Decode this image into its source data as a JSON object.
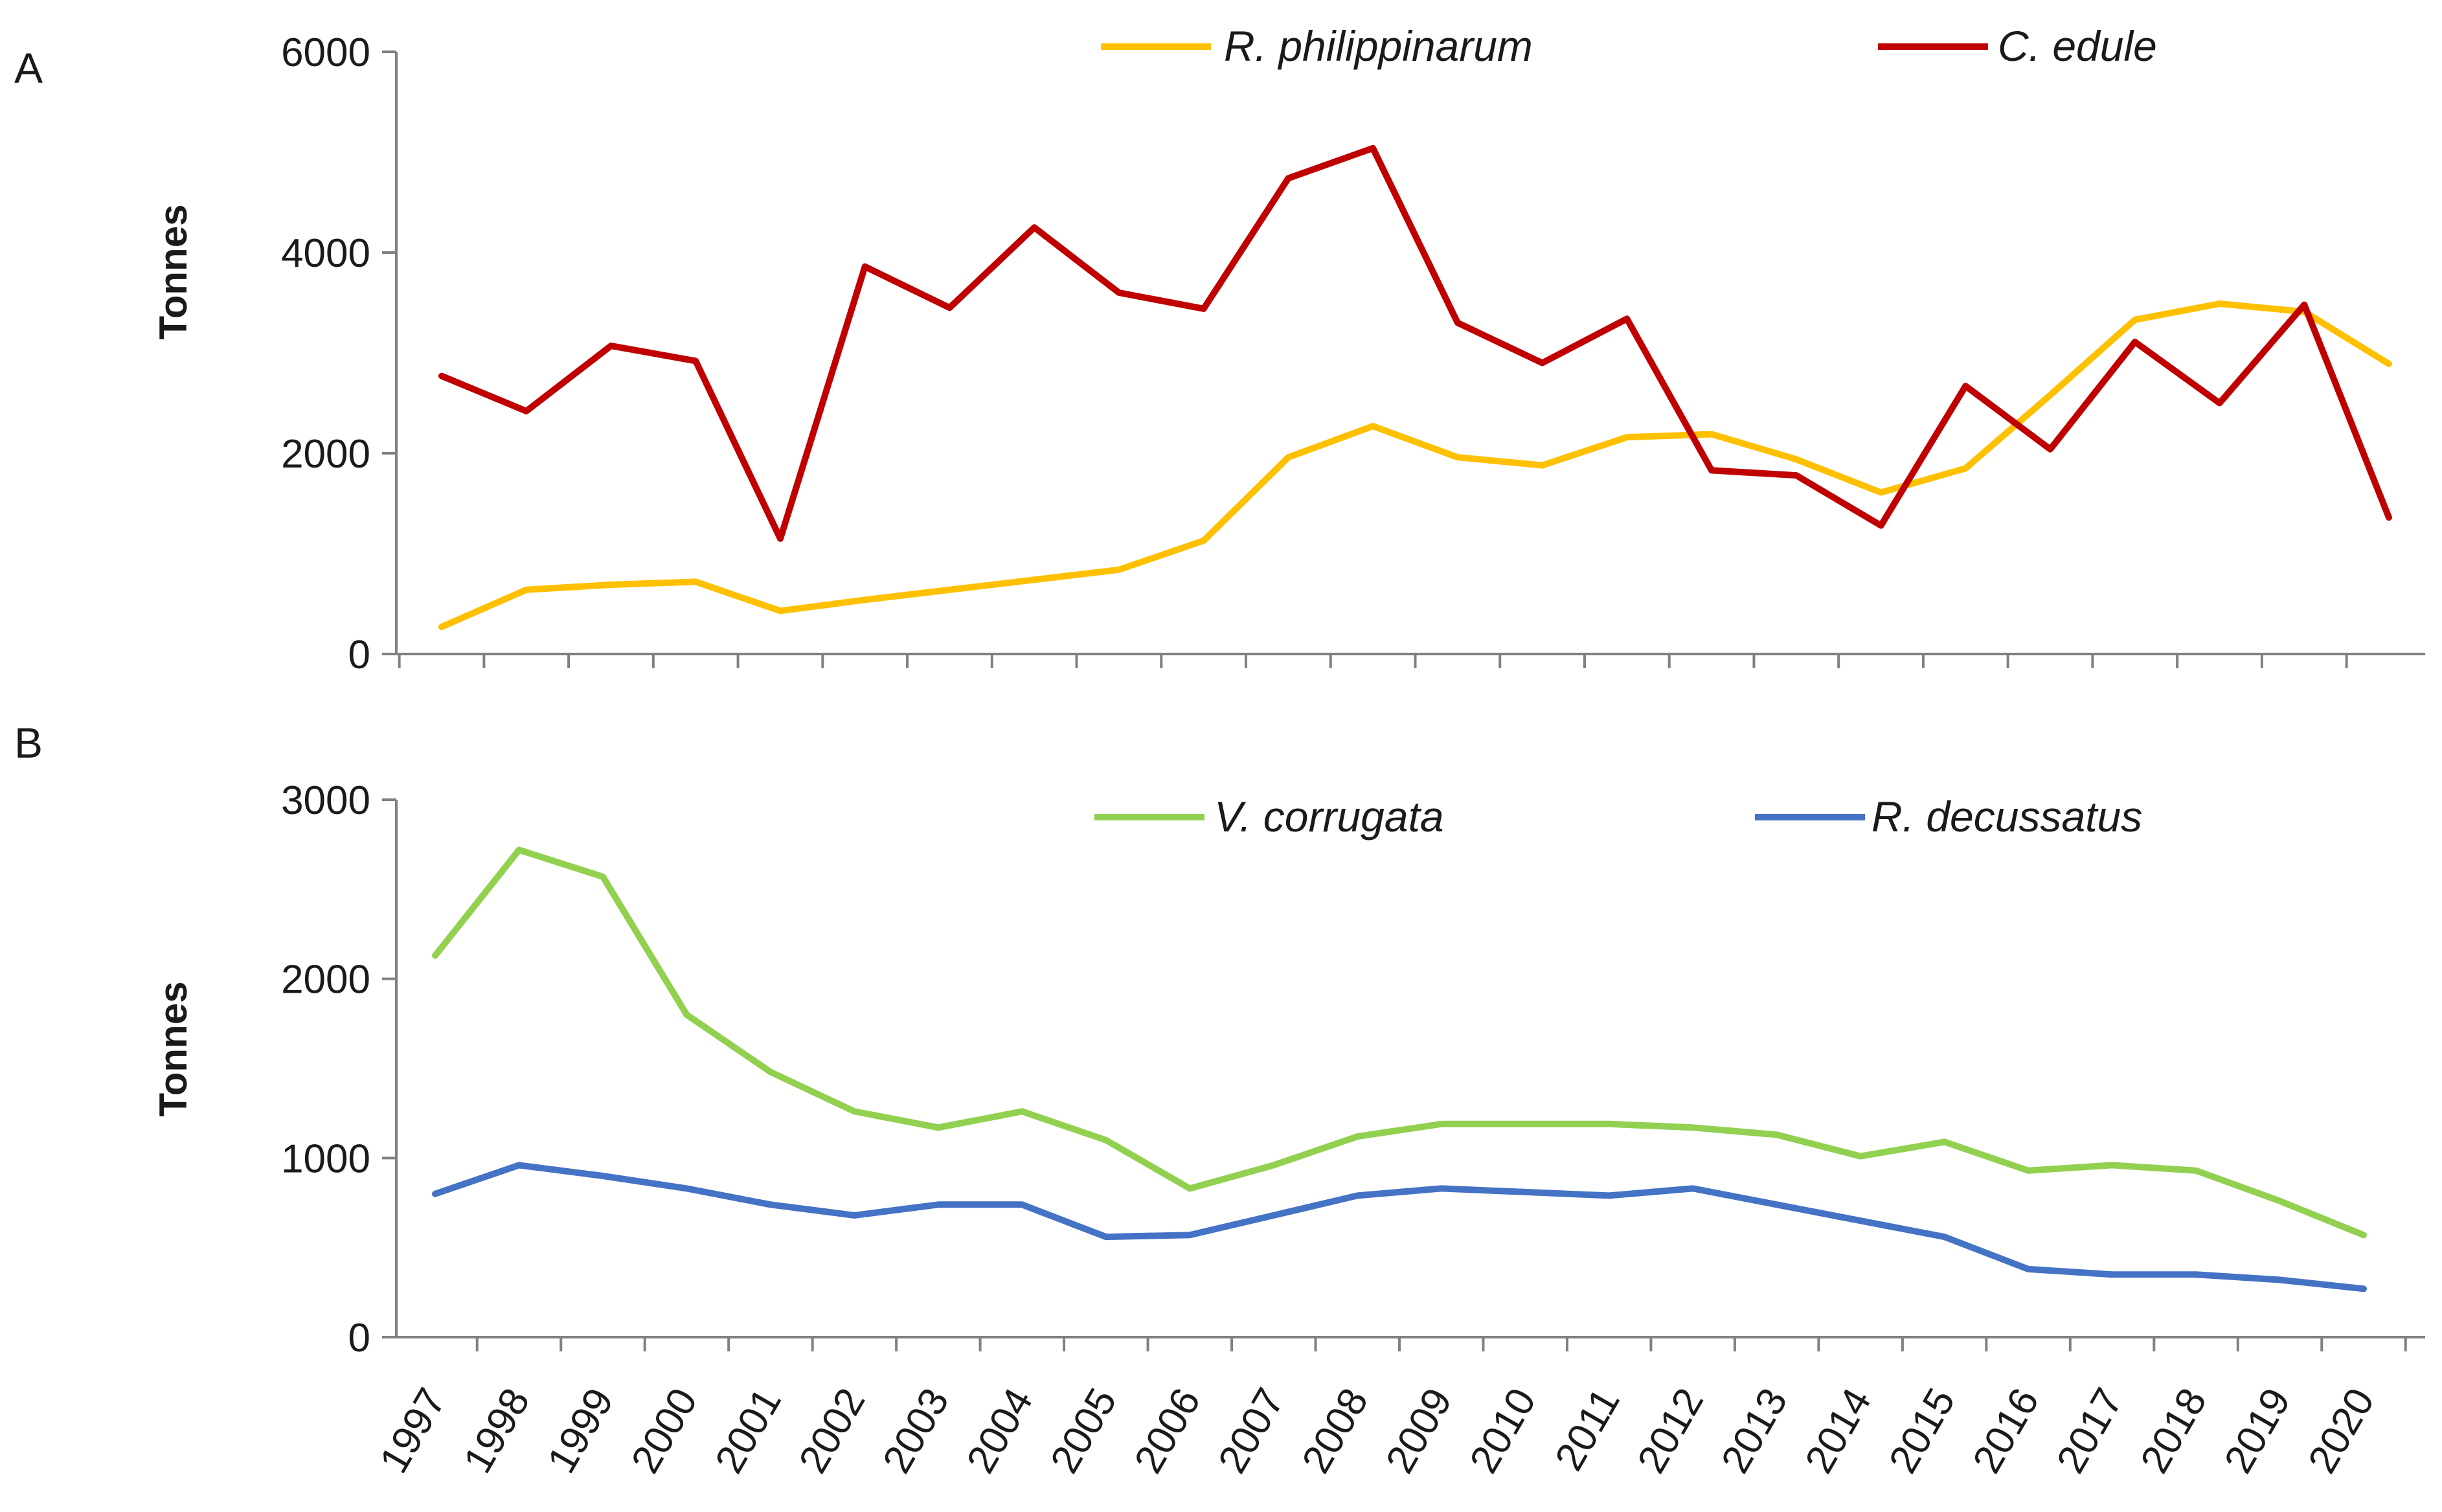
{
  "colors": {
    "r_philippinarum": "#FFC000",
    "c_edule": "#C00000",
    "v_corrugata": "#92D050",
    "r_decussatus": "#4472C4",
    "axis": "#808080",
    "text": "#1a1a1a"
  },
  "chart_data": [
    {
      "panel_label": "A",
      "type": "line",
      "title": "",
      "xlabel": "",
      "ylabel": "Tonnes",
      "ylim": [
        0,
        6000
      ],
      "yticks": [
        "0",
        "2000",
        "4000",
        "6000"
      ],
      "ytick_values": [
        0,
        2000,
        4000,
        6000
      ],
      "legend_position": "top",
      "grid": false,
      "categories": [
        "1997",
        "1998",
        "1999",
        "2000",
        "2001",
        "2002",
        "2003",
        "2004",
        "2005",
        "2006",
        "2007",
        "2008",
        "2009",
        "2010",
        "2011",
        "2012",
        "2013",
        "2014",
        "2015",
        "2016",
        "2017",
        "2018",
        "2019",
        "2020"
      ],
      "series": [
        {
          "name": "R. philippinarum",
          "color_key": "r_philippinarum",
          "values": [
            270,
            640,
            690,
            720,
            430,
            540,
            640,
            740,
            840,
            1130,
            1960,
            2270,
            1960,
            1880,
            2160,
            2190,
            1940,
            1610,
            1850,
            2580,
            3330,
            3490,
            3410,
            2890
          ]
        },
        {
          "name": "C. edule",
          "color_key": "c_edule",
          "values": [
            2770,
            2420,
            3070,
            2920,
            1150,
            3860,
            3450,
            4250,
            3600,
            3440,
            4740,
            5040,
            3300,
            2900,
            3340,
            1830,
            1780,
            1280,
            2670,
            2040,
            3110,
            2500,
            3480,
            1360
          ]
        }
      ]
    },
    {
      "panel_label": "B",
      "type": "line",
      "title": "",
      "xlabel": "",
      "ylabel": "Tonnes",
      "ylim": [
        0,
        3000
      ],
      "yticks": [
        "0",
        "1000",
        "2000",
        "3000"
      ],
      "ytick_values": [
        0,
        1000,
        2000,
        3000
      ],
      "legend_position": "top",
      "grid": false,
      "categories": [
        "1997",
        "1998",
        "1999",
        "2000",
        "2001",
        "2002",
        "2003",
        "2004",
        "2005",
        "2006",
        "2007",
        "2008",
        "2009",
        "2010",
        "2011",
        "2012",
        "2013",
        "2014",
        "2015",
        "2016",
        "2017",
        "2018",
        "2019",
        "2020"
      ],
      "series": [
        {
          "name": "V. corrugata",
          "color_key": "v_corrugata",
          "values": [
            2130,
            2720,
            2570,
            1800,
            1480,
            1260,
            1170,
            1260,
            1100,
            830,
            960,
            1120,
            1190,
            1190,
            1190,
            1170,
            1130,
            1010,
            1090,
            930,
            960,
            930,
            760,
            570
          ]
        },
        {
          "name": "R. decussatus",
          "color_key": "r_decussatus",
          "values": [
            800,
            960,
            900,
            830,
            740,
            680,
            740,
            740,
            560,
            570,
            680,
            790,
            830,
            810,
            790,
            830,
            740,
            650,
            560,
            380,
            350,
            350,
            320,
            270
          ]
        }
      ]
    }
  ]
}
